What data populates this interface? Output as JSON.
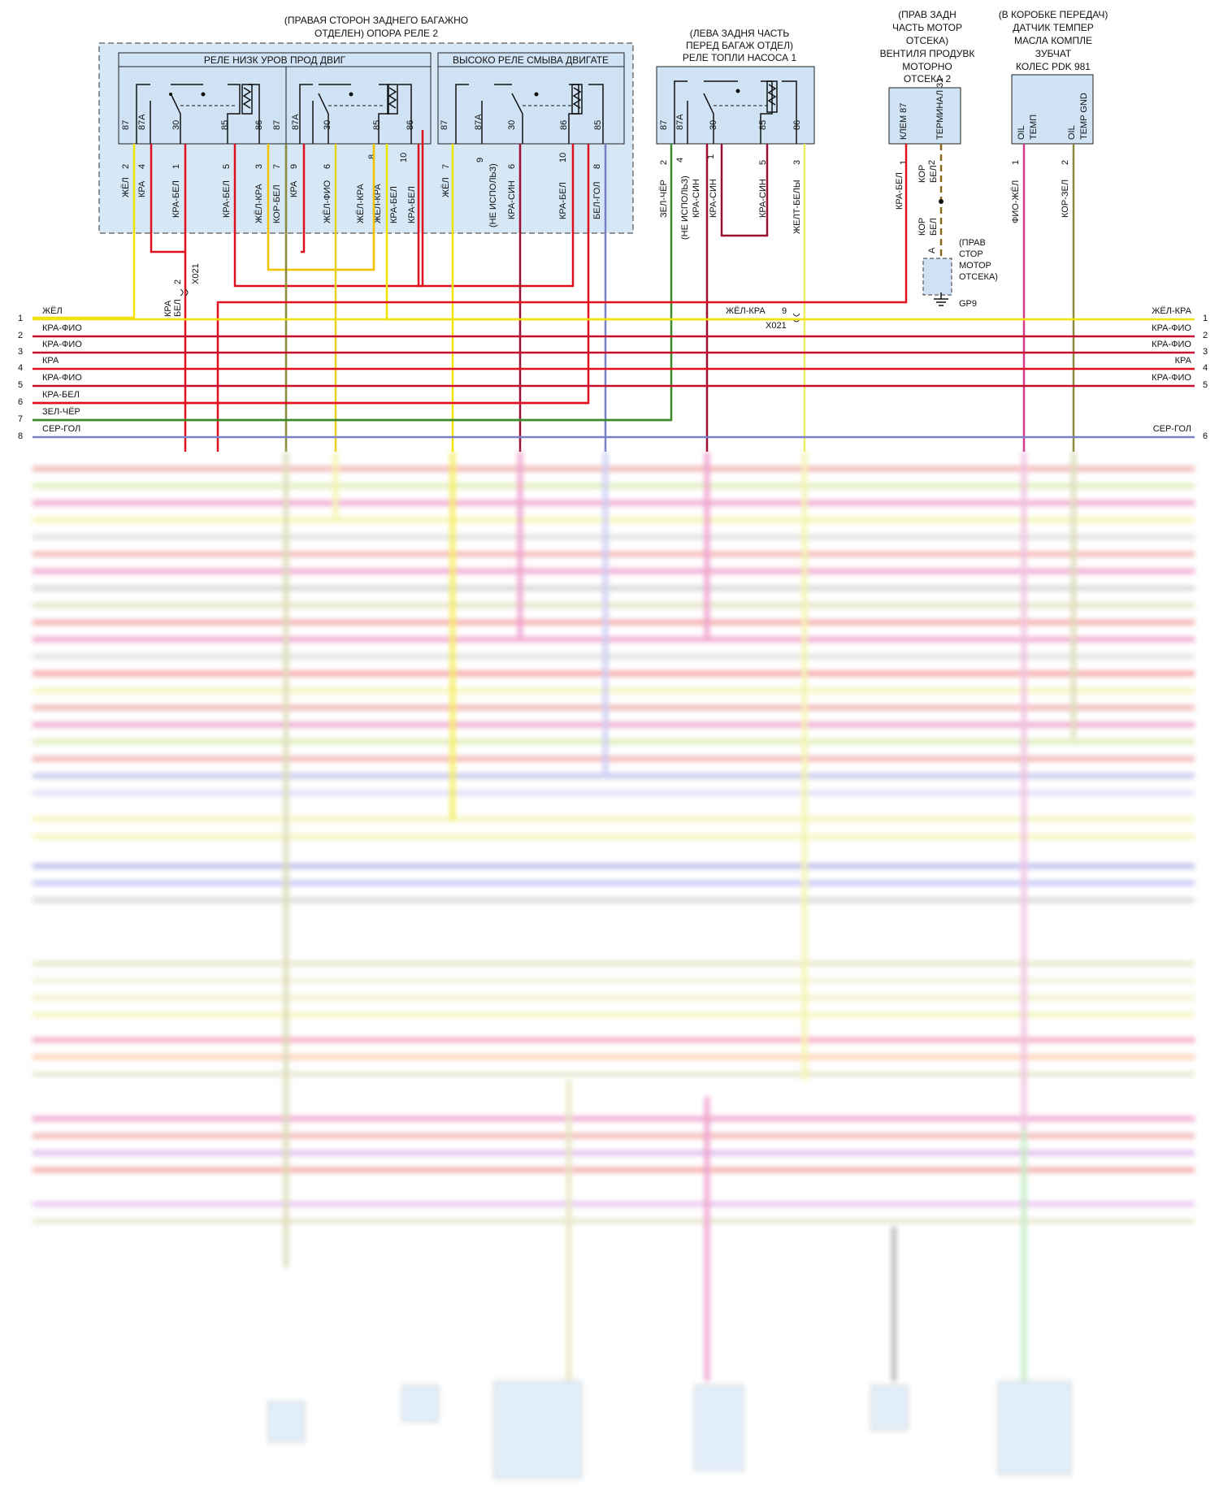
{
  "relay_group_1": {
    "title_line1": "(ПРАВАЯ СТОРОН ЗАДНЕГО БАГАЖНО",
    "title_line2": "ОТДЕЛЕН) ОПОРА РЕЛЕ 2",
    "relay_low": {
      "label": "РЕЛЕ НИЗК УРОВ ПРОД ДВИГ",
      "terms": [
        "87",
        "87A",
        "30",
        "85",
        "86",
        "87",
        "87A",
        "30",
        "85",
        "86"
      ],
      "pins": [
        "2",
        "4",
        "1",
        "5",
        "3",
        "7",
        "9",
        "6",
        "8",
        "10"
      ],
      "wires": [
        "ЖЁЛ",
        "КРА",
        "КРА-БЕЛ",
        "КРА-БЕЛ",
        "ЖЁЛ-КРА",
        "КОР-БЕЛ",
        "КРА",
        "ЖЁЛ-ФИО",
        "ЖЁЛ-КРА",
        "КРА-БЕЛ"
      ]
    },
    "relay_high": {
      "label": "ВЫСОКО РЕЛЕ СМЫВА ДВИГАТЕ",
      "terms": [
        "87",
        "87A",
        "30",
        "86",
        "85"
      ],
      "pins": [
        "7",
        "9",
        "6",
        "10",
        "8"
      ],
      "wires": [
        "ЖЁЛ",
        "(НЕ ИСПОЛЬЗ)",
        "КРА-СИН",
        "КРА-БЕЛ",
        "БЕЛ-ГОЛ"
      ],
      "extra_wires": [
        "ЖЁЛ-КРА",
        "КРА-БЕЛ"
      ]
    }
  },
  "relay_group_2": {
    "title_line1": "(ЛЕВА ЗАДНЯ ЧАСТЬ",
    "title_line2": "ПЕРЕД БАГАЖ ОТДЕЛ)",
    "title_line3": "РЕЛЕ ТОПЛИ НАСОСА 1",
    "terms": [
      "87",
      "87A",
      "30",
      "85",
      "86"
    ],
    "pins": [
      "2",
      "4",
      "1",
      "5",
      "3"
    ],
    "wires": [
      "ЗЕЛ-ЧЁР",
      "(НЕ ИСПОЛЬЗ)",
      "КРА-СИН",
      "КРА-СИН",
      "ЖЕЛТ-БЕЛЫ"
    ]
  },
  "valve": {
    "title_line1": "(ПРАВ ЗАДН",
    "title_line2": "ЧАСТЬ МОТОР",
    "title_line3": "ОТСЕКА)",
    "title_line4": "ВЕНТИЛЯ ПРОДУВК",
    "title_line5": "МОТОРНО",
    "title_line6": "ОТСЕКА 2",
    "term1": "КЛЕМ 87",
    "term2": "ТЕРМИНАЛ 31",
    "pin1": "1",
    "pin2": "2",
    "wire1": "КРА-БЕЛ",
    "wire2_a": "КОР",
    "wire2_b": "БЕЛ",
    "wire3_a": "КОР",
    "wire3_b": "БЕЛ",
    "ground_pin": "A",
    "ground_loc_1": "(ПРАВ",
    "ground_loc_2": "СТОР",
    "ground_loc_3": "МОТОР",
    "ground_loc_4": "ОТСЕКА)",
    "ground_label": "GP9"
  },
  "sensor": {
    "title_line1": "(В КОРОБКЕ ПЕРЕДАЧ)",
    "title_line2": "ДАТЧИК ТЕМПЕР",
    "title_line3": "МАСЛА КОМПЛЕ",
    "title_line4": "ЗУБЧАТ",
    "title_line5": "КОЛЕС PDK 981",
    "term1_a": "OIL",
    "term1_b": "ТЕМП",
    "term2_a": "OIL",
    "term2_b": "TEMP GND",
    "pin1": "1",
    "pin2": "2",
    "wire1": "ФИО-ЖЁЛ",
    "wire2": "КОР-ЗЕЛ"
  },
  "connectors": {
    "x021_left_wire_a": "КРА",
    "x021_left_wire_b": "БЕЛ",
    "x021_left_pin": "2",
    "x021_left_name": "X021",
    "x021_right_wire": "ЖЁЛ-КРА",
    "x021_right_pin": "9",
    "x021_right_name": "X021"
  },
  "bus_left": [
    {
      "num": "1",
      "label": "ЖЁЛ"
    },
    {
      "num": "2",
      "label": "КРА-ФИО"
    },
    {
      "num": "3",
      "label": "КРА-ФИО"
    },
    {
      "num": "4",
      "label": "КРА"
    },
    {
      "num": "5",
      "label": "КРА-ФИО"
    },
    {
      "num": "6",
      "label": "КРА-БЕЛ"
    },
    {
      "num": "7",
      "label": "ЗЕЛ-ЧЁР"
    },
    {
      "num": "8",
      "label": "СЕР-ГОЛ"
    }
  ],
  "bus_right": [
    {
      "num": "1",
      "label": "ЖЁЛ-КРА"
    },
    {
      "num": "2",
      "label": "КРА-ФИО"
    },
    {
      "num": "3",
      "label": "КРА-ФИО"
    },
    {
      "num": "4",
      "label": "КРА"
    },
    {
      "num": "5",
      "label": "КРА-ФИО"
    },
    {
      "num": "6",
      "label": "СЕР-ГОЛ"
    }
  ],
  "colors": {
    "yellow": "#f2e200",
    "red": "#e0101e",
    "crimson": "#c8102e",
    "green": "#3a8a2a",
    "gray_blue": "#7a80c8",
    "magenta": "#d23c8c",
    "olive": "#8a8a3a",
    "brown_dash": "#8a6a1a",
    "relay_fill": "#cfe3f5",
    "wine": "#9a1030"
  }
}
